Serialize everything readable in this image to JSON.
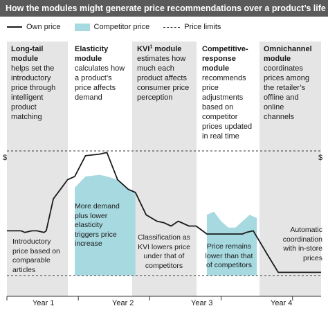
{
  "title": "How the modules might generate price recommendations over a product’s life cycle",
  "legend": {
    "own_price": "Own price",
    "competitor_price": "Competitor price",
    "price_limits": "Price limits"
  },
  "y_axis_symbol": "$",
  "modules": [
    {
      "name": "Long-tail module",
      "name_lines": [
        "Long-tail",
        "module"
      ],
      "sup": "",
      "desc_lines": [
        "helps set the",
        "introductory",
        "price through",
        "intelligent",
        "product",
        "matching"
      ]
    },
    {
      "name": "Elasticity module",
      "name_lines": [
        "Elasticity",
        "module"
      ],
      "sup": "",
      "desc_lines": [
        "calculates how",
        "a product’s",
        "price affects",
        "demand"
      ]
    },
    {
      "name": "KVI module",
      "name_lines": [
        "KVI"
      ],
      "sup": "1",
      "name_suffix": " module",
      "desc_lines": [
        "estimates how",
        "much each",
        "product affects",
        "consumer price",
        "perception"
      ]
    },
    {
      "name": "Competitive-response module",
      "name_lines": [
        "Competitive-",
        "response",
        "module"
      ],
      "sup": "",
      "desc_lines": [
        "recommends",
        "price",
        "adjustments",
        "based on",
        "competitor",
        "prices updated",
        "in real time"
      ]
    },
    {
      "name": "Omnichannel module",
      "name_lines": [
        "Omnichannel",
        "module"
      ],
      "sup": "",
      "desc_lines": [
        "coordinates",
        "prices among",
        "the retailer’s",
        "offline and",
        "online",
        "channels"
      ]
    }
  ],
  "annotations": [
    {
      "lines": [
        "Introductory",
        "price based on",
        "comparable",
        "articles"
      ]
    },
    {
      "lines": [
        "More demand",
        "plus lower",
        "elasticity",
        "triggers price",
        "increase"
      ]
    },
    {
      "lines": [
        "Classification as",
        "KVI lowers price",
        "under that of",
        "competitors"
      ]
    },
    {
      "lines": [
        "Price remains",
        "lower than that",
        "of competitors"
      ]
    },
    {
      "lines": [
        "Automatic",
        "coordination",
        "with in-store",
        "prices"
      ]
    }
  ],
  "colors": {
    "title_bg": "#5a5a5a",
    "panel_gray": "#e5e5e5",
    "competitor_fill": "#a7d9e0",
    "own_line": "#1a1a1a"
  },
  "chart_data": {
    "type": "line",
    "title": "How the modules might generate price recommendations over a product’s life cycle",
    "xlabel": "",
    "ylabel": "$",
    "x_ticks": [
      "Year 1",
      "Year 2",
      "Year 3",
      "Year 4"
    ],
    "x_range": [
      0,
      4.4
    ],
    "y_range": [
      0,
      100
    ],
    "price_limits": {
      "upper": 100,
      "lower": 22
    },
    "series": [
      {
        "name": "Own price",
        "style": "line",
        "points": [
          [
            0.0,
            50
          ],
          [
            0.2,
            50
          ],
          [
            0.25,
            49
          ],
          [
            0.35,
            50
          ],
          [
            0.42,
            50
          ],
          [
            0.52,
            49
          ],
          [
            0.55,
            50
          ],
          [
            0.65,
            70
          ],
          [
            0.75,
            76
          ],
          [
            0.85,
            82
          ],
          [
            0.95,
            84
          ],
          [
            1.1,
            97
          ],
          [
            1.3,
            98
          ],
          [
            1.4,
            99
          ],
          [
            1.55,
            82
          ],
          [
            1.7,
            76
          ],
          [
            1.8,
            74
          ],
          [
            1.95,
            60
          ],
          [
            2.1,
            56
          ],
          [
            2.2,
            55
          ],
          [
            2.3,
            53
          ],
          [
            2.4,
            56
          ],
          [
            2.55,
            53
          ],
          [
            2.65,
            53
          ],
          [
            2.8,
            48
          ],
          [
            2.9,
            48
          ],
          [
            3.1,
            48
          ],
          [
            3.2,
            48
          ],
          [
            3.3,
            48
          ],
          [
            3.35,
            49
          ],
          [
            3.45,
            50
          ],
          [
            3.65,
            35
          ],
          [
            3.8,
            24
          ],
          [
            4.0,
            24
          ],
          [
            4.2,
            24
          ],
          [
            4.4,
            24
          ]
        ]
      },
      {
        "name": "Competitor price",
        "style": "area",
        "segments": [
          {
            "points": [
              [
                0.95,
                77
              ],
              [
                1.1,
                84
              ],
              [
                1.3,
                85
              ],
              [
                1.4,
                84
              ],
              [
                1.55,
                82
              ],
              [
                1.7,
                76
              ],
              [
                1.8,
                74
              ]
            ]
          },
          {
            "points": [
              [
                2.8,
                60
              ],
              [
                2.9,
                62
              ],
              [
                3.0,
                56
              ],
              [
                3.1,
                52
              ],
              [
                3.2,
                52
              ],
              [
                3.3,
                56
              ],
              [
                3.4,
                60
              ],
              [
                3.5,
                58
              ]
            ]
          }
        ]
      }
    ]
  }
}
